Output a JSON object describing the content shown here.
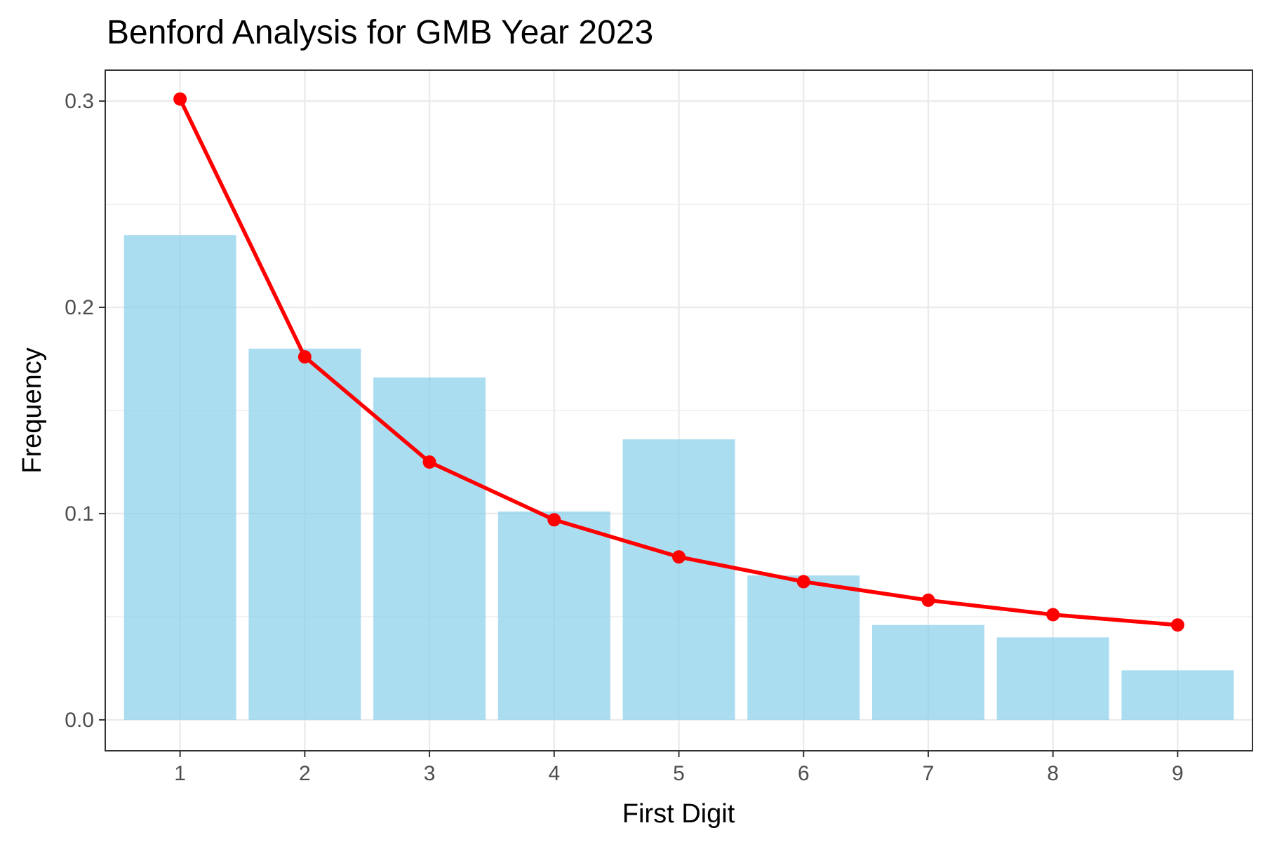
{
  "chart_data": {
    "type": "bar",
    "title": "Benford Analysis for GMB Year 2023",
    "xlabel": "First Digit",
    "ylabel": "Frequency",
    "categories": [
      "1",
      "2",
      "3",
      "4",
      "5",
      "6",
      "7",
      "8",
      "9"
    ],
    "x": [
      1,
      2,
      3,
      4,
      5,
      6,
      7,
      8,
      9
    ],
    "xlim": [
      0.4,
      9.6
    ],
    "ylim": [
      -0.015,
      0.315
    ],
    "yticks": [
      0.0,
      0.1,
      0.2,
      0.3
    ],
    "ytick_labels": [
      "0.0",
      "0.1",
      "0.2",
      "0.3"
    ],
    "grid": true,
    "series": [
      {
        "type": "bar",
        "values": [
          0.235,
          0.18,
          0.166,
          0.101,
          0.136,
          0.07,
          0.046,
          0.04,
          0.024
        ],
        "color": "#87ceeb"
      },
      {
        "type": "line",
        "values": [
          0.301,
          0.176,
          0.125,
          0.097,
          0.079,
          0.067,
          0.058,
          0.051,
          0.046
        ],
        "color": "#ff0000"
      }
    ]
  }
}
